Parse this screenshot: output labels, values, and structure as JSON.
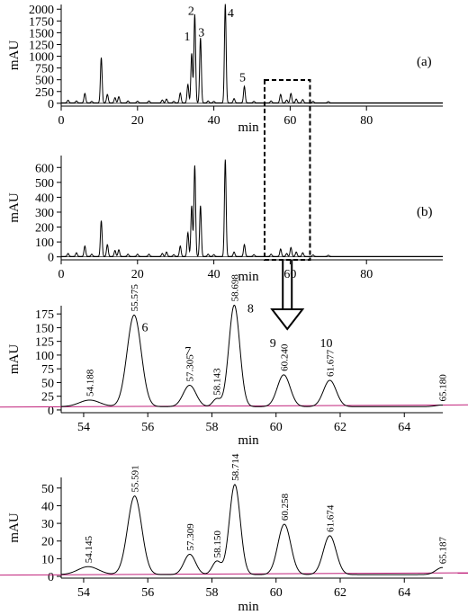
{
  "chart_data": [
    {
      "type": "line",
      "panel_label": "(a)",
      "xlabel": "min",
      "ylabel": "mAU",
      "xlim": [
        0,
        100
      ],
      "ylim": [
        -60,
        2100
      ],
      "xticks": [
        "0",
        "20",
        "40",
        "60",
        "80"
      ],
      "yticks": [
        "0",
        "250",
        "500",
        "750",
        "1000",
        "1250",
        "1500",
        "1750",
        "2000"
      ],
      "baseline": 10,
      "peaks": [
        {
          "t": 1.8,
          "h": 55
        },
        {
          "t": 4.0,
          "h": 40
        },
        {
          "t": 6.2,
          "h": 200
        },
        {
          "t": 8.0,
          "h": 30
        },
        {
          "t": 10.5,
          "h": 960
        },
        {
          "t": 12.1,
          "h": 180
        },
        {
          "t": 14.1,
          "h": 110
        },
        {
          "t": 15.1,
          "h": 130
        },
        {
          "t": 17.5,
          "h": 40
        },
        {
          "t": 20.0,
          "h": 35
        },
        {
          "t": 23.0,
          "h": 40
        },
        {
          "t": 26.5,
          "h": 60
        },
        {
          "t": 27.6,
          "h": 80
        },
        {
          "t": 29.5,
          "h": 30
        },
        {
          "t": 31.2,
          "h": 210
        },
        {
          "t": 33.2,
          "h": 390
        },
        {
          "t": 34.2,
          "h": 1050
        },
        {
          "t": 35.0,
          "h": 1880
        },
        {
          "t": 36.5,
          "h": 1380
        },
        {
          "t": 38.5,
          "h": 40
        },
        {
          "t": 40.0,
          "h": 30
        },
        {
          "t": 43.0,
          "h": 2100
        },
        {
          "t": 45.3,
          "h": 90
        },
        {
          "t": 48.0,
          "h": 350
        },
        {
          "t": 50.5,
          "h": 30
        },
        {
          "t": 55.0,
          "h": 40
        },
        {
          "t": 57.5,
          "h": 180
        },
        {
          "t": 59.1,
          "h": 60
        },
        {
          "t": 60.2,
          "h": 200
        },
        {
          "t": 61.6,
          "h": 80
        },
        {
          "t": 63.3,
          "h": 70
        },
        {
          "t": 66.0,
          "h": 30
        },
        {
          "t": 70.0,
          "h": 25
        }
      ],
      "peak_numbers": [
        {
          "label": "1",
          "t": 34.2,
          "h": 1050
        },
        {
          "label": "2",
          "t": 35.0,
          "h": 1880
        },
        {
          "label": "3",
          "t": 36.5,
          "h": 1380
        },
        {
          "label": "4",
          "t": 43.0,
          "h": 2100
        },
        {
          "label": "5",
          "t": 48.0,
          "h": 350
        }
      ]
    },
    {
      "type": "line",
      "panel_label": "(b)",
      "xlabel": "min",
      "ylabel": "mAU",
      "xlim": [
        0,
        100
      ],
      "ylim": [
        -20,
        680
      ],
      "xticks": [
        "0",
        "20",
        "40",
        "60",
        "80"
      ],
      "yticks": [
        "0",
        "100",
        "200",
        "300",
        "400",
        "500",
        "600"
      ],
      "baseline": 3,
      "peaks": [
        {
          "t": 1.8,
          "h": 20
        },
        {
          "t": 4.0,
          "h": 25
        },
        {
          "t": 6.2,
          "h": 70
        },
        {
          "t": 8.0,
          "h": 15
        },
        {
          "t": 10.5,
          "h": 240
        },
        {
          "t": 12.1,
          "h": 80
        },
        {
          "t": 14.1,
          "h": 40
        },
        {
          "t": 15.1,
          "h": 45
        },
        {
          "t": 17.5,
          "h": 15
        },
        {
          "t": 20.0,
          "h": 15
        },
        {
          "t": 23.0,
          "h": 15
        },
        {
          "t": 26.5,
          "h": 20
        },
        {
          "t": 27.6,
          "h": 30
        },
        {
          "t": 29.5,
          "h": 12
        },
        {
          "t": 31.2,
          "h": 70
        },
        {
          "t": 33.2,
          "h": 160
        },
        {
          "t": 34.2,
          "h": 340
        },
        {
          "t": 35.0,
          "h": 610
        },
        {
          "t": 36.5,
          "h": 340
        },
        {
          "t": 38.5,
          "h": 15
        },
        {
          "t": 40.0,
          "h": 12
        },
        {
          "t": 43.0,
          "h": 650
        },
        {
          "t": 45.3,
          "h": 30
        },
        {
          "t": 48.0,
          "h": 80
        },
        {
          "t": 50.5,
          "h": 12
        },
        {
          "t": 55.0,
          "h": 15
        },
        {
          "t": 57.5,
          "h": 50
        },
        {
          "t": 59.1,
          "h": 20
        },
        {
          "t": 60.2,
          "h": 60
        },
        {
          "t": 61.6,
          "h": 30
        },
        {
          "t": 63.3,
          "h": 25
        },
        {
          "t": 66.0,
          "h": 10
        },
        {
          "t": 70.0,
          "h": 8
        }
      ],
      "peak_numbers": []
    },
    {
      "type": "line",
      "xlabel": "min",
      "ylabel": "mAU",
      "xlim": [
        53.3,
        65.2
      ],
      "ylim": [
        -5,
        190
      ],
      "xticks": [
        "54",
        "56",
        "58",
        "60",
        "62",
        "64"
      ],
      "yticks": [
        "0",
        "25",
        "50",
        "75",
        "100",
        "125",
        "150",
        "175"
      ],
      "baseline": 6,
      "peaks": [
        {
          "t": 54.188,
          "h": 12,
          "w": 0.32
        },
        {
          "t": 55.575,
          "h": 167,
          "w": 0.22
        },
        {
          "t": 57.305,
          "h": 39,
          "w": 0.2
        },
        {
          "t": 58.143,
          "h": 14,
          "w": 0.12
        },
        {
          "t": 58.698,
          "h": 185,
          "w": 0.17
        },
        {
          "t": 60.24,
          "h": 58,
          "w": 0.2
        },
        {
          "t": 61.677,
          "h": 48,
          "w": 0.2
        },
        {
          "t": 65.18,
          "h": 3,
          "w": 0.2
        }
      ],
      "retention_labels": [
        "54.188",
        "55.575",
        "57.305",
        "58.143",
        "58.698",
        "60.240",
        "61.677",
        "65.180"
      ],
      "peak_numbers": [
        {
          "label": "6",
          "t": 55.575,
          "h": 167
        },
        {
          "label": "7",
          "t": 57.305,
          "h": 39
        },
        {
          "label": "8",
          "t": 58.698,
          "h": 185
        },
        {
          "label": "9",
          "t": 60.24,
          "h": 58
        },
        {
          "label": "10",
          "t": 61.677,
          "h": 48
        }
      ]
    },
    {
      "type": "line",
      "xlabel": "min",
      "ylabel": "mAU",
      "xlim": [
        53.3,
        65.2
      ],
      "ylim": [
        -1,
        56
      ],
      "xticks": [
        "54",
        "56",
        "58",
        "60",
        "62",
        "64"
      ],
      "yticks": [
        "0",
        "10",
        "20",
        "30",
        "40",
        "50"
      ],
      "baseline": 1.0,
      "peaks": [
        {
          "t": 54.145,
          "h": 4.5,
          "w": 0.32
        },
        {
          "t": 55.591,
          "h": 44.5,
          "w": 0.22
        },
        {
          "t": 57.309,
          "h": 11.5,
          "w": 0.18
        },
        {
          "t": 58.15,
          "h": 7.5,
          "w": 0.14
        },
        {
          "t": 58.714,
          "h": 51,
          "w": 0.17
        },
        {
          "t": 60.258,
          "h": 28.5,
          "w": 0.2
        },
        {
          "t": 61.674,
          "h": 22,
          "w": 0.2
        },
        {
          "t": 65.187,
          "h": 4,
          "w": 0.2
        }
      ],
      "retention_labels": [
        "54.145",
        "55.591",
        "57.309",
        "58.150",
        "58.714",
        "60.258",
        "61.674",
        "65.187"
      ],
      "peak_numbers": []
    }
  ],
  "colors": {
    "trace": "#000000",
    "baseline": "#c0207a",
    "highlight_box": "#000000"
  },
  "annotations": {
    "zoom_arrow": "down-arrow"
  }
}
